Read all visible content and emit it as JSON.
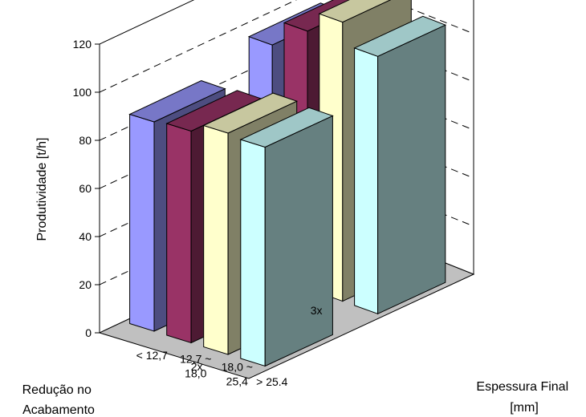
{
  "chart_data": {
    "type": "bar",
    "subtype": "3d-grouped-column",
    "title": "",
    "zlabel": "Produtividade [t/h]",
    "xlabel": "Espessura Final [mm]",
    "xlabel_lines": [
      "Espessura Final",
      "[mm]"
    ],
    "ylabel": "Redução no Acabamento",
    "ylabel_lines": [
      "Redução no",
      "Acabamento"
    ],
    "zlim": [
      0,
      120
    ],
    "zticks": [
      "0",
      "20",
      "40",
      "60",
      "80",
      "100",
      "120"
    ],
    "grid": true,
    "legend": "none",
    "categories": [
      "< 12,7",
      "12,7 ~ 18,0",
      "18,0 ~ 25,4",
      "> 25.4"
    ],
    "category_lines": [
      [
        "< 12,7"
      ],
      [
        "12,7 ~",
        "18,0"
      ],
      [
        "18,0 ~",
        "25,4"
      ],
      [
        "> 25.4"
      ]
    ],
    "depth_categories": [
      "2x",
      "3x"
    ],
    "values": {
      "2x": [
        87,
        88,
        92,
        91
      ],
      "3x": [
        96,
        107,
        116,
        107
      ]
    },
    "colors": {
      "< 12,7": "#9999FF",
      "12,7 ~ 18,0": "#993366",
      "18,0 ~ 25,4": "#FFFFCC",
      "> 25.4": "#CCFFFF",
      "floor": "#C0C0C0",
      "edge": "#000000"
    }
  }
}
